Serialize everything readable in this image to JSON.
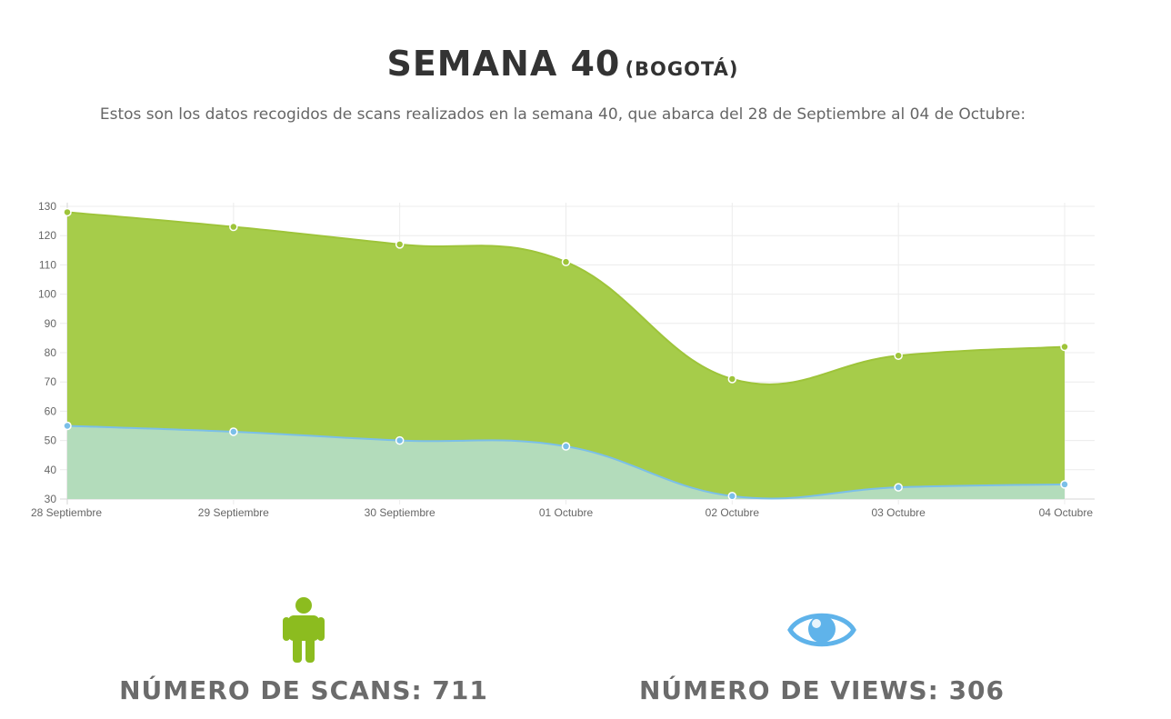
{
  "header": {
    "title": "SEMANA 40",
    "title_suffix": "(BOGOTÁ)",
    "subtitle": "Estos son los datos recogidos de scans realizados en la semana 40, que abarca del 28 de Septiembre al 04 de Octubre:"
  },
  "chart_data": {
    "type": "area",
    "categories": [
      "28 Septiembre",
      "29 Septiembre",
      "30 Septiembre",
      "01 Octubre",
      "02 Octubre",
      "03 Octubre",
      "04 Octubre"
    ],
    "series": [
      {
        "values": [
          128,
          123,
          117,
          111,
          71,
          79,
          82
        ],
        "color": "#9ec43a",
        "fill": "#a6cc4a"
      },
      {
        "values": [
          55,
          53,
          50,
          48,
          31,
          34,
          35
        ],
        "color": "#7bbfe8",
        "fill": "#b3dcbb"
      }
    ],
    "ylim": [
      30,
      130
    ],
    "yticks": [
      30,
      40,
      50,
      60,
      70,
      80,
      90,
      100,
      110,
      120,
      130
    ],
    "grid": true,
    "xlabel": "",
    "ylabel": ""
  },
  "stats": {
    "scans": {
      "label": "NÚMERO DE SCANS: 711",
      "icon": "person-icon",
      "color": "#8cbc1f"
    },
    "views": {
      "label": "NÚMERO DE VIEWS: 306",
      "icon": "eye-icon",
      "color": "#5fb3ea"
    }
  }
}
